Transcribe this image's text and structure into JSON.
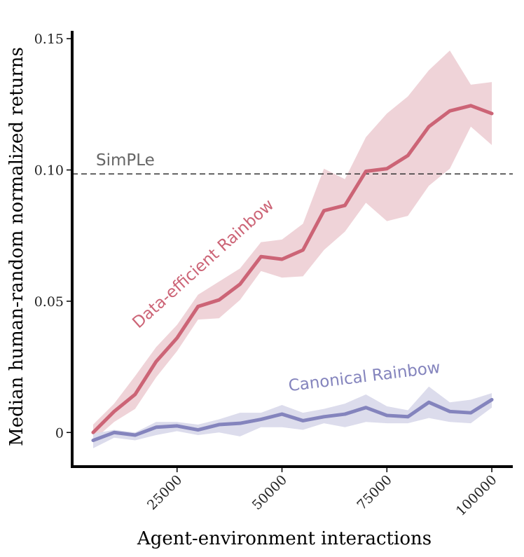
{
  "chart_data": {
    "type": "line",
    "xlabel": "Agent-environment interactions",
    "ylabel": "Median human-random normalized returns",
    "xlim": [
      0,
      105000
    ],
    "ylim": [
      -0.013,
      0.153
    ],
    "x_ticks": [
      25000,
      50000,
      75000,
      100000
    ],
    "x_tick_labels": [
      "25000",
      "50000",
      "75000",
      "100000"
    ],
    "y_ticks": [
      0,
      0.05,
      0.1,
      0.15
    ],
    "y_tick_labels": [
      "0",
      "0.05",
      "0.10",
      "0.15"
    ],
    "grid": false,
    "legend": "none",
    "reference_line": {
      "label": "SimPLe",
      "y": 0.0985,
      "style": "dashed",
      "color": "#333333"
    },
    "series": [
      {
        "name": "Data-efficient Rainbow",
        "color": "#cc6476",
        "band_color": "#efd3d8",
        "x": [
          5000,
          10000,
          15000,
          20000,
          25000,
          30000,
          35000,
          40000,
          45000,
          50000,
          55000,
          60000,
          65000,
          70000,
          75000,
          80000,
          85000,
          90000,
          95000,
          100000
        ],
        "values": [
          0.0,
          0.008,
          0.0145,
          0.027,
          0.036,
          0.048,
          0.0505,
          0.0565,
          0.067,
          0.066,
          0.0695,
          0.0845,
          0.0865,
          0.0995,
          0.1005,
          0.1055,
          0.1165,
          0.1225,
          0.1245,
          0.1215
        ],
        "lower": [
          -0.003,
          0.004,
          0.009,
          0.021,
          0.031,
          0.043,
          0.0435,
          0.0505,
          0.0615,
          0.059,
          0.0595,
          0.0695,
          0.0765,
          0.0875,
          0.0805,
          0.0825,
          0.094,
          0.1005,
          0.1165,
          0.1095
        ],
        "upper": [
          0.003,
          0.011,
          0.0215,
          0.0325,
          0.041,
          0.0525,
          0.0575,
          0.0625,
          0.0725,
          0.0735,
          0.0795,
          0.1005,
          0.0965,
          0.1125,
          0.1215,
          0.128,
          0.138,
          0.1455,
          0.1325,
          0.1335
        ]
      },
      {
        "name": "Canonical Rainbow",
        "color": "#8484bd",
        "band_color": "#dcdcec",
        "x": [
          5000,
          10000,
          15000,
          20000,
          25000,
          30000,
          35000,
          40000,
          45000,
          50000,
          55000,
          60000,
          65000,
          70000,
          75000,
          80000,
          85000,
          90000,
          95000,
          100000
        ],
        "values": [
          -0.003,
          0.0,
          -0.001,
          0.002,
          0.0025,
          0.001,
          0.003,
          0.0035,
          0.005,
          0.007,
          0.0045,
          0.006,
          0.007,
          0.0095,
          0.0065,
          0.006,
          0.0115,
          0.008,
          0.0075,
          0.0125
        ],
        "lower": [
          -0.006,
          -0.002,
          -0.003,
          -0.001,
          0.0005,
          -0.001,
          0.0,
          -0.0015,
          0.002,
          0.002,
          0.001,
          0.0035,
          0.002,
          0.004,
          0.0035,
          0.0035,
          0.0055,
          0.004,
          0.0035,
          0.0095
        ],
        "upper": [
          -0.0005,
          0.001,
          0.0,
          0.004,
          0.004,
          0.003,
          0.005,
          0.0075,
          0.0075,
          0.0105,
          0.0075,
          0.009,
          0.011,
          0.0145,
          0.01,
          0.0085,
          0.0175,
          0.0115,
          0.0125,
          0.015
        ]
      }
    ]
  }
}
